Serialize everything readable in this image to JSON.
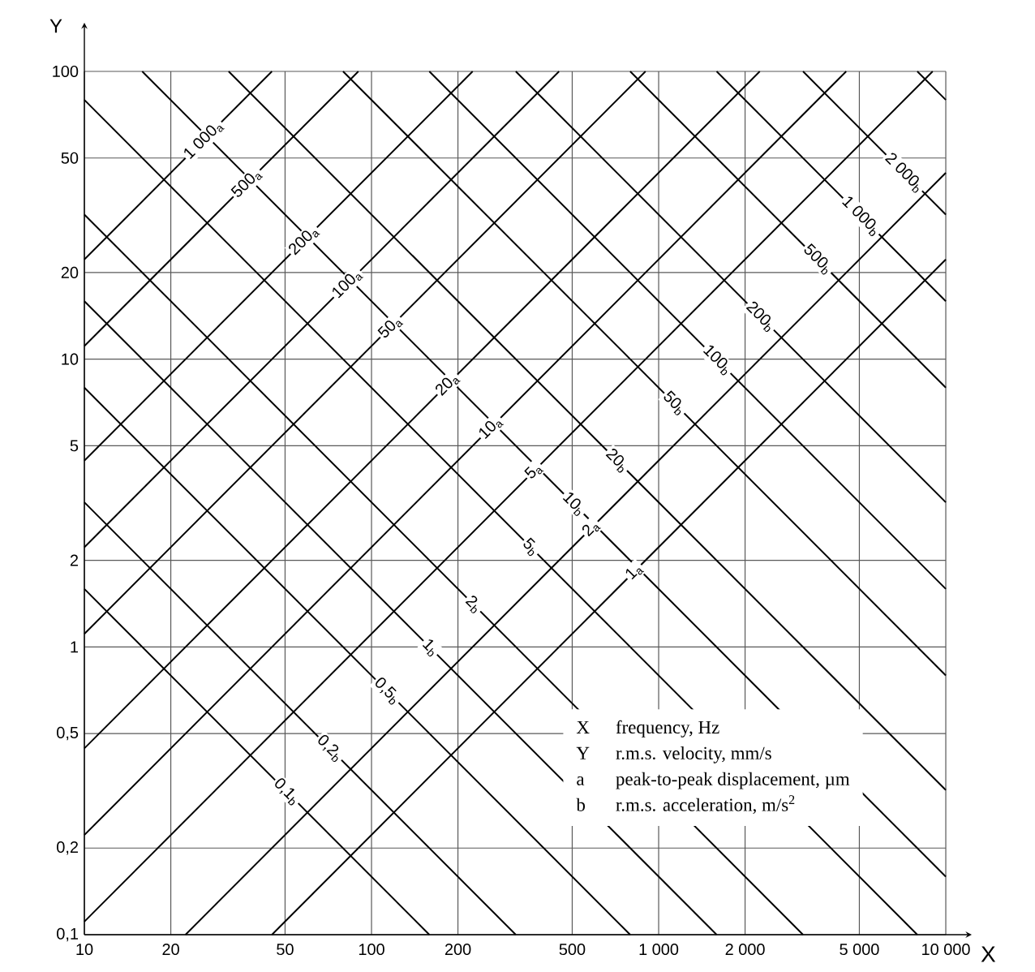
{
  "chart_data": {
    "type": "line",
    "xlabel": "X",
    "ylabel": "Y",
    "log": "xy",
    "grid": true,
    "marker": "none",
    "line_style": "solid",
    "xlim": [
      10,
      10000
    ],
    "ylim": [
      0.1,
      100
    ],
    "xticks": [
      10,
      20,
      50,
      100,
      200,
      500,
      {
        "value": 1000,
        "label": "1 000"
      },
      {
        "value": 2000,
        "label": "2 000"
      },
      {
        "value": 5000,
        "label": "5 000"
      },
      {
        "value": 10000,
        "label": "10 000"
      }
    ],
    "yticks": [
      {
        "value": 0.1,
        "label": "0,1"
      },
      {
        "value": 0.2,
        "label": "0,2"
      },
      {
        "value": 0.5,
        "label": "0,5"
      },
      1,
      2,
      5,
      10,
      20,
      50,
      100
    ],
    "series": [
      {
        "name": "1 000$_{a}$",
        "color": "#000000",
        "x": [
          10,
          45
        ],
        "values": [
          22.2,
          100
        ]
      },
      {
        "name": "500$_{a}$",
        "color": "#000000",
        "x": [
          10,
          90
        ],
        "values": [
          11.1,
          100
        ]
      },
      {
        "name": "200$_{a}$",
        "color": "#000000",
        "x": [
          10,
          225
        ],
        "values": [
          4.44,
          100
        ]
      },
      {
        "name": "100$_{a}$",
        "color": "#000000",
        "x": [
          10,
          450
        ],
        "values": [
          2.22,
          100
        ]
      },
      {
        "name": "50$_{a}$",
        "color": "#000000",
        "x": [
          10,
          900
        ],
        "values": [
          1.11,
          100
        ]
      },
      {
        "name": "20$_{a}$",
        "color": "#000000",
        "x": [
          10,
          2250
        ],
        "values": [
          0.444,
          100
        ]
      },
      {
        "name": "10$_{a}$",
        "color": "#000000",
        "x": [
          10,
          4500
        ],
        "values": [
          0.222,
          100
        ]
      },
      {
        "name": "5$_{a}$",
        "color": "#000000",
        "x": [
          10,
          9000
        ],
        "values": [
          0.111,
          100
        ]
      },
      {
        "name": "2$_{a}$",
        "color": "#000000",
        "x": [
          22.5,
          10000
        ],
        "values": [
          0.1,
          44.4
        ]
      },
      {
        "name": "1$_{a}$",
        "color": "#000000",
        "x": [
          45,
          10000
        ],
        "values": [
          0.1,
          22.2
        ]
      },
      {
        "color": "#000000",
        "x": [
          7958,
          10000
        ],
        "values": [
          100,
          79.6
        ]
      },
      {
        "name": "2 000$_{b}$",
        "color": "#000000",
        "x": [
          3183,
          10000
        ],
        "values": [
          100,
          31.8
        ]
      },
      {
        "name": "1 000$_{b}$",
        "color": "#000000",
        "x": [
          1592,
          10000
        ],
        "values": [
          100,
          15.9
        ]
      },
      {
        "name": "500$_{b}$",
        "color": "#000000",
        "x": [
          796,
          10000
        ],
        "values": [
          100,
          7.96
        ]
      },
      {
        "name": "200$_{b}$",
        "color": "#000000",
        "x": [
          318,
          10000
        ],
        "values": [
          100,
          3.18
        ]
      },
      {
        "name": "100$_{b}$",
        "color": "#000000",
        "x": [
          159,
          10000
        ],
        "values": [
          100,
          1.59
        ]
      },
      {
        "name": "50$_{b}$",
        "color": "#000000",
        "x": [
          79.6,
          10000
        ],
        "values": [
          100,
          0.796
        ]
      },
      {
        "name": "20$_{b}$",
        "color": "#000000",
        "x": [
          31.8,
          10000
        ],
        "values": [
          100,
          0.318
        ]
      },
      {
        "name": "10$_{b}$",
        "color": "#000000",
        "x": [
          15.9,
          10000
        ],
        "values": [
          100,
          0.159
        ]
      },
      {
        "name": "5$_{b}$",
        "color": "#000000",
        "x": [
          10,
          7958
        ],
        "values": [
          79.6,
          0.1
        ]
      },
      {
        "name": "2$_{b}$",
        "color": "#000000",
        "x": [
          10,
          3183
        ],
        "values": [
          31.8,
          0.1
        ]
      },
      {
        "name": "1$_{b}$",
        "color": "#000000",
        "x": [
          10,
          1592
        ],
        "values": [
          15.9,
          0.1
        ]
      },
      {
        "name": "0,5$_{b}$",
        "color": "#000000",
        "x": [
          10,
          796
        ],
        "values": [
          7.96,
          0.1
        ]
      },
      {
        "name": "0,2$_{b}$",
        "color": "#000000",
        "x": [
          10,
          318
        ],
        "values": [
          3.18,
          0.1
        ]
      },
      {
        "name": "0,1$_{b}$",
        "color": "#000000",
        "x": [
          10,
          159
        ],
        "values": [
          1.59,
          0.1
        ]
      }
    ],
    "annotations": [
      "X",
      "frequency, Hz",
      "Y",
      "r.m.s. velocity, mm/s",
      "a",
      "peak-to-peak displacement, µm",
      "b",
      "r.m.s. acceleration, m/s$^{2}$"
    ]
  }
}
